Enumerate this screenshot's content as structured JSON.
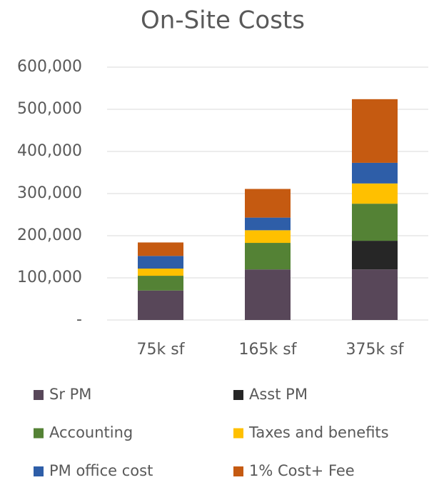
{
  "chart_data": {
    "type": "stacked_bar",
    "title": "On-Site Costs",
    "categories": [
      "75k sf",
      "165k sf",
      "375k sf"
    ],
    "series": [
      {
        "name": "Sr PM",
        "color": "#584759",
        "values": [
          70000,
          120000,
          120000
        ]
      },
      {
        "name": "Asst PM",
        "color": "#262626",
        "values": [
          0,
          0,
          68000
        ]
      },
      {
        "name": "Accounting",
        "color": "#548235",
        "values": [
          35000,
          63000,
          88000
        ]
      },
      {
        "name": "Taxes and benefits",
        "color": "#ffc000",
        "values": [
          17000,
          30000,
          48000
        ]
      },
      {
        "name": "PM office cost",
        "color": "#2e5ea8",
        "values": [
          30000,
          30000,
          49000
        ]
      },
      {
        "name": "1% Cost+ Fee",
        "color": "#c55a11",
        "values": [
          32000,
          68000,
          151000
        ]
      }
    ],
    "ylim": [
      0,
      600000
    ],
    "yticks": [
      {
        "value": 0,
        "label": "-"
      },
      {
        "value": 100000,
        "label": "100,000"
      },
      {
        "value": 200000,
        "label": "200,000"
      },
      {
        "value": 300000,
        "label": "300,000"
      },
      {
        "value": 400000,
        "label": "400,000"
      },
      {
        "value": 500000,
        "label": "500,000"
      },
      {
        "value": 600000,
        "label": "600,000"
      }
    ],
    "grid": true
  }
}
